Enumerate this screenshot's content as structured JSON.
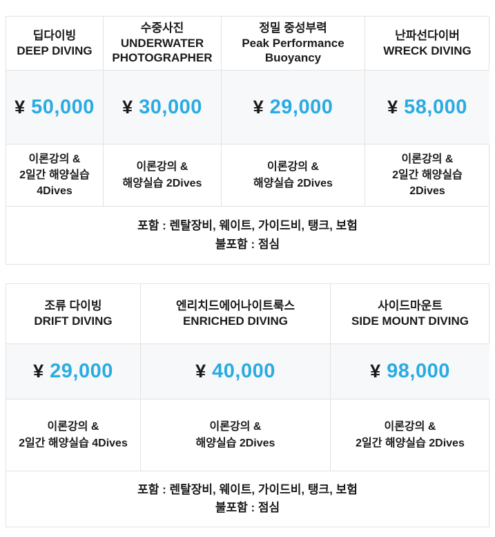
{
  "colors": {
    "accent_blue": "#29abe2",
    "text": "#1a1a1a",
    "border": "#e2e2e2",
    "price_row_background": "#f7f8fa"
  },
  "currency_symbol": "¥",
  "tables": [
    {
      "columns": [
        {
          "title_ko": "딥다이빙",
          "title_en": "DEEP DIVING",
          "price": "50,000",
          "details": "이론강의 &\n2일간 해양실습\n4Dives"
        },
        {
          "title_ko": "수중사진",
          "title_en": "UNDERWATER PHOTOGRAPHER",
          "price": "30,000",
          "details": "이론강의 &\n해양실습 2Dives"
        },
        {
          "title_ko": "정밀 중성부력",
          "title_en": "Peak Performance Buoyancy",
          "price": "29,000",
          "details": "이론강의 &\n해양실습 2Dives"
        },
        {
          "title_ko": "난파선다이버",
          "title_en": "WRECK DIVING",
          "price": "58,000",
          "details": "이론강의 &\n2일간 해양실습\n2Dives"
        }
      ],
      "footer_line1": "포함 : 렌탈장비, 웨이트, 가이드비, 탱크, 보험",
      "footer_line2": "불포함 : 점심"
    },
    {
      "columns": [
        {
          "title_ko": "조류 다이빙",
          "title_en": "DRIFT DIVING",
          "price": "29,000",
          "details": "이론강의 &\n2일간 해양실습 4Dives"
        },
        {
          "title_ko": "엔리치드에어나이트룩스",
          "title_en": "ENRICHED DIVING",
          "price": "40,000",
          "details": "이론강의 &\n해양실습 2Dives"
        },
        {
          "title_ko": "사이드마운트",
          "title_en": "SIDE MOUNT DIVING",
          "price": "98,000",
          "details": "이론강의 &\n2일간 해양실습 2Dives"
        }
      ],
      "footer_line1": "포함 : 렌탈장비, 웨이트, 가이드비, 탱크, 보험",
      "footer_line2": "불포함 : 점심"
    }
  ]
}
